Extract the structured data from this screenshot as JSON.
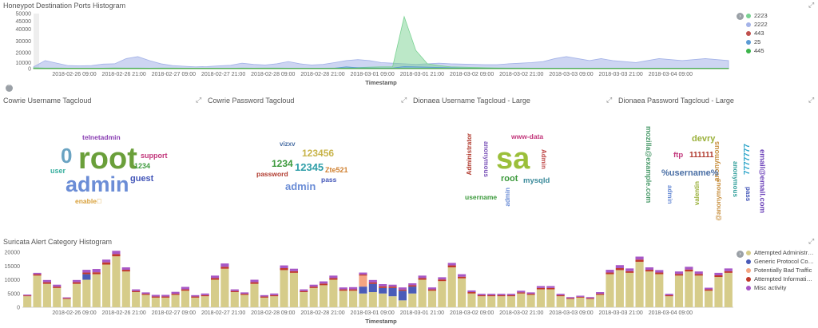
{
  "panels": {
    "ports": {
      "title": "Honeypot Destination Ports Histogram"
    },
    "cowrie_user": {
      "title": "Cowrie Username Tagcloud"
    },
    "cowrie_pass": {
      "title": "Cowrie Password Tagcloud"
    },
    "dionaea_user": {
      "title": "Dionaea Username Tagcloud - Large"
    },
    "dionaea_pass": {
      "title": "Dionaea Password Tagcloud - Large"
    },
    "suricata": {
      "title": "Suricata Alert Category Histogram"
    }
  },
  "icons": {
    "expand": "expand-icon",
    "legend_toggle": "chevron-right-icon",
    "collapse": "chevron-up-icon"
  },
  "chart_data": [
    {
      "type": "area",
      "title": "Honeypot Destination Ports Histogram",
      "xlabel": "Timestamp",
      "x_ticks": [
        "2018-02-26 09:00",
        "2018-02-26 21:00",
        "2018-02-27 09:00",
        "2018-02-27 21:00",
        "2018-02-28 09:00",
        "2018-02-28 21:00",
        "2018-03-01 09:00",
        "2018-03-01 21:00",
        "2018-03-02 09:00",
        "2018-03-02 21:00",
        "2018-03-03 09:00",
        "2018-03-03 21:00",
        "2018-03-04 09:00"
      ],
      "y_ticks": [
        "50000",
        "45000",
        "40000",
        "30000",
        "20000",
        "10000",
        "0"
      ],
      "series": [
        {
          "name": "2223",
          "color": "#79d292",
          "values": [
            1500,
            1000,
            1000,
            800,
            700,
            600,
            800,
            1200,
            1000,
            900,
            800,
            900,
            900,
            800,
            700,
            800,
            700,
            700,
            900,
            800,
            900,
            1000,
            800,
            600,
            700,
            800,
            900,
            1200,
            1800,
            2500,
            3000,
            3000,
            48000,
            22000,
            8000,
            5000,
            3000,
            2500,
            2000,
            1500,
            1200,
            1000,
            900,
            800,
            800,
            700,
            700,
            700,
            600,
            600,
            700,
            700,
            700,
            600,
            600,
            600,
            700,
            600,
            600,
            600,
            600
          ]
        },
        {
          "name": "2222",
          "color": "#a4b3e8",
          "values": [
            3000,
            12000,
            9000,
            5000,
            4500,
            5000,
            7500,
            8000,
            14000,
            16000,
            12000,
            8000,
            5000,
            4000,
            3000,
            3500,
            4500,
            5500,
            9000,
            7000,
            6000,
            8000,
            11000,
            8000,
            6000,
            7000,
            10000,
            12000,
            13000,
            12000,
            10000,
            9000,
            8000,
            7000,
            8000,
            9000,
            8000,
            7500,
            7000,
            6500,
            6500,
            8000,
            9000,
            10000,
            11000,
            14000,
            16000,
            14000,
            12000,
            14000,
            12000,
            11000,
            10000,
            12000,
            14000,
            13000,
            12000,
            13000,
            14000,
            13000,
            12000
          ]
        },
        {
          "name": "443",
          "color": "#c0504d",
          "values": [
            300,
            300,
            300,
            300,
            300,
            300,
            300,
            300,
            300,
            300,
            300,
            300,
            300,
            300,
            300,
            300,
            300,
            300,
            300,
            300,
            300,
            300,
            300,
            300,
            300,
            300,
            300,
            300,
            300,
            300,
            300,
            300,
            300,
            300,
            300,
            300,
            300,
            300,
            300,
            300,
            300,
            300,
            300,
            300,
            300,
            300,
            300,
            300,
            300,
            300,
            300,
            300,
            300,
            300,
            300,
            300,
            300,
            300,
            300,
            300,
            300
          ]
        },
        {
          "name": "25",
          "color": "#5b9bd5",
          "values": [
            200,
            200,
            200,
            200,
            200,
            200,
            200,
            200,
            200,
            200,
            200,
            200,
            200,
            200,
            200,
            200,
            200,
            200,
            200,
            200,
            200,
            300,
            300,
            300,
            400,
            500,
            800,
            3000,
            1500,
            1200,
            1000,
            900,
            3500,
            3000,
            2500,
            2000,
            1500,
            1000,
            800,
            600,
            500,
            400,
            300,
            300,
            300,
            300,
            300,
            300,
            300,
            300,
            300,
            300,
            300,
            300,
            300,
            300,
            300,
            300,
            300,
            300,
            300
          ]
        },
        {
          "name": "445",
          "color": "#3cb44b",
          "values": [
            400,
            400,
            400,
            400,
            400,
            400,
            400,
            400,
            400,
            400,
            400,
            400,
            400,
            400,
            400,
            400,
            400,
            400,
            400,
            400,
            400,
            400,
            400,
            400,
            400,
            400,
            400,
            400,
            400,
            400,
            400,
            400,
            400,
            400,
            400,
            400,
            400,
            400,
            400,
            400,
            400,
            400,
            400,
            400,
            400,
            400,
            400,
            400,
            400,
            400,
            400,
            400,
            400,
            400,
            400,
            400,
            400,
            400,
            400,
            400,
            400
          ]
        }
      ]
    },
    {
      "type": "bar",
      "title": "Suricata Alert Category Histogram",
      "xlabel": "Timestamp",
      "x_ticks": [
        "2018-02-26 09:00",
        "2018-02-26 21:00",
        "2018-02-27 09:00",
        "2018-02-27 21:00",
        "2018-02-28 09:00",
        "2018-02-28 21:00",
        "2018-03-01 09:00",
        "2018-03-01 21:00",
        "2018-03-02 09:00",
        "2018-03-02 21:00",
        "2018-03-03 09:00",
        "2018-03-03 21:00",
        "2018-03-04 09:00"
      ],
      "y_ticks": [
        "20000",
        "15000",
        "10000",
        "5000",
        "0"
      ],
      "series": [
        {
          "name": "Attempted Administr…",
          "color": "#d6cc8a",
          "values": [
            4000,
            11500,
            8500,
            7000,
            3000,
            8500,
            10000,
            12000,
            15500,
            18500,
            13000,
            5500,
            4500,
            3500,
            3500,
            4500,
            6000,
            3500,
            4000,
            10000,
            14000,
            5500,
            4500,
            8500,
            3500,
            4000,
            13500,
            12500,
            5500,
            7000,
            8000,
            10000,
            6000,
            6000,
            5000,
            5500,
            5000,
            4000,
            2500,
            5000,
            10000,
            6000,
            9500,
            14500,
            10500,
            5000,
            4000,
            4000,
            4000,
            4000,
            5000,
            4500,
            6500,
            6500,
            4000,
            3000,
            3500,
            3000,
            4500,
            12000,
            13500,
            12500,
            16500,
            13000,
            12000,
            4000,
            11500,
            13000,
            11500,
            6000,
            11000,
            12500
          ]
        },
        {
          "name": "Generic Protocol Co…",
          "color": "#4a5bb8",
          "values": [
            0,
            0,
            0,
            0,
            0,
            0,
            2000,
            0,
            0,
            0,
            0,
            0,
            0,
            0,
            0,
            0,
            0,
            0,
            0,
            0,
            0,
            0,
            0,
            0,
            0,
            0,
            0,
            0,
            0,
            0,
            0,
            0,
            0,
            0,
            2500,
            3000,
            2000,
            3000,
            3500,
            2500,
            0,
            0,
            0,
            0,
            0,
            0,
            0,
            0,
            0,
            0,
            0,
            0,
            0,
            0,
            0,
            0,
            0,
            0,
            0,
            0,
            0,
            0,
            0,
            0,
            0,
            0,
            0,
            0,
            0,
            0,
            0,
            0
          ]
        },
        {
          "name": "Potentially Bad Traffic",
          "color": "#f4a582",
          "values": [
            0,
            0,
            0,
            0,
            0,
            0,
            0,
            0,
            0,
            0,
            0,
            0,
            0,
            0,
            0,
            0,
            0,
            0,
            0,
            0,
            0,
            0,
            0,
            0,
            0,
            0,
            0,
            0,
            0,
            0,
            0,
            0,
            0,
            0,
            4000,
            0,
            0,
            0,
            0,
            0,
            0,
            0,
            0,
            0,
            0,
            0,
            0,
            0,
            0,
            0,
            0,
            0,
            0,
            0,
            0,
            0,
            0,
            0,
            0,
            0,
            0,
            0,
            0,
            0,
            0,
            0,
            0,
            0,
            0,
            0,
            0,
            0
          ]
        },
        {
          "name": "Attempted Informati…",
          "color": "#c0392b",
          "values": [
            300,
            500,
            600,
            500,
            300,
            600,
            600,
            700,
            800,
            800,
            600,
            400,
            400,
            400,
            400,
            400,
            500,
            400,
            400,
            600,
            700,
            400,
            400,
            600,
            400,
            400,
            700,
            600,
            400,
            500,
            600,
            600,
            500,
            500,
            400,
            500,
            600,
            500,
            400,
            500,
            600,
            500,
            600,
            700,
            600,
            500,
            400,
            400,
            400,
            400,
            400,
            400,
            500,
            500,
            400,
            300,
            300,
            300,
            400,
            600,
            700,
            600,
            800,
            600,
            600,
            400,
            600,
            700,
            600,
            500,
            600,
            600
          ]
        },
        {
          "name": "Misc activity",
          "color": "#a757c6",
          "values": [
            300,
            500,
            800,
            700,
            300,
            800,
            1000,
            1200,
            1000,
            1200,
            900,
            600,
            500,
            600,
            600,
            700,
            900,
            500,
            600,
            900,
            1200,
            600,
            500,
            900,
            500,
            600,
            1000,
            900,
            600,
            700,
            800,
            900,
            700,
            800,
            700,
            900,
            800,
            700,
            800,
            700,
            900,
            700,
            800,
            900,
            900,
            600,
            500,
            500,
            500,
            500,
            600,
            500,
            700,
            700,
            500,
            400,
            400,
            400,
            600,
            1000,
            1100,
            1000,
            1100,
            900,
            900,
            500,
            900,
            1000,
            900,
            600,
            900,
            1000
          ]
        }
      ]
    }
  ],
  "tagclouds": {
    "cowrie_user": [
      {
        "text": "root",
        "color": "#6a9f3a"
      },
      {
        "text": "0",
        "color": "#6aa3c2"
      },
      {
        "text": "admin",
        "color": "#6b8dd6"
      },
      {
        "text": "telnetadmin",
        "color": "#8a3fb3"
      },
      {
        "text": "support",
        "color": "#c2367b"
      },
      {
        "text": "1234",
        "color": "#3c9a3c"
      },
      {
        "text": "guest",
        "color": "#4255b8"
      },
      {
        "text": "user",
        "color": "#3ab0a0"
      },
      {
        "text": "enable\u0000",
        "color": "#d8a03a"
      }
    ],
    "cowrie_pass": [
      {
        "text": "vizxv",
        "color": "#4a6fa5"
      },
      {
        "text": "123456",
        "color": "#c8b44a"
      },
      {
        "text": "1234",
        "color": "#3c9a3c"
      },
      {
        "text": "12345",
        "color": "#2f9ea8"
      },
      {
        "text": "password",
        "color": "#b03a2e"
      },
      {
        "text": "Zte521",
        "color": "#d08030"
      },
      {
        "text": "admin",
        "color": "#6b8dd6"
      },
      {
        "text": "pass",
        "color": "#4255b8"
      }
    ],
    "dionaea_user": [
      {
        "text": "sa",
        "color": "#9bbf3a"
      },
      {
        "text": "www-data",
        "color": "#c2367b"
      },
      {
        "text": "Administrator",
        "color": "#b03a2e"
      },
      {
        "text": "anonymous",
        "color": "#7a52b8"
      },
      {
        "text": "Admin",
        "color": "#c04a4a"
      },
      {
        "text": "root",
        "color": "#3c9a3c"
      },
      {
        "text": "mysqld",
        "color": "#3a8a9a"
      },
      {
        "text": "username",
        "color": "#3c9a3c"
      },
      {
        "text": "admin",
        "color": "#6b8dd6"
      }
    ],
    "dionaea_pass": [
      {
        "text": "mozilla@example.com",
        "color": "#4a9a6a"
      },
      {
        "text": "devry",
        "color": "#9ab03a"
      },
      {
        "text": "111111",
        "color": "#b03a2e"
      },
      {
        "text": "anonymous",
        "color": "#c89040"
      },
      {
        "text": "7777777",
        "color": "#2aa3c8"
      },
      {
        "text": "email@email.com",
        "color": "#6a3fb8"
      },
      {
        "text": "ftp",
        "color": "#c2367b"
      },
      {
        "text": "%username%",
        "color": "#4a6fa5"
      },
      {
        "text": "anonymous",
        "color": "#2f9e9a"
      },
      {
        "text": "admin",
        "color": "#6b8dd6"
      },
      {
        "text": "valentin",
        "color": "#9ab03a"
      },
      {
        "text": "@anonymous",
        "color": "#c89040"
      },
      {
        "text": "pass",
        "color": "#4255b8"
      }
    ]
  }
}
